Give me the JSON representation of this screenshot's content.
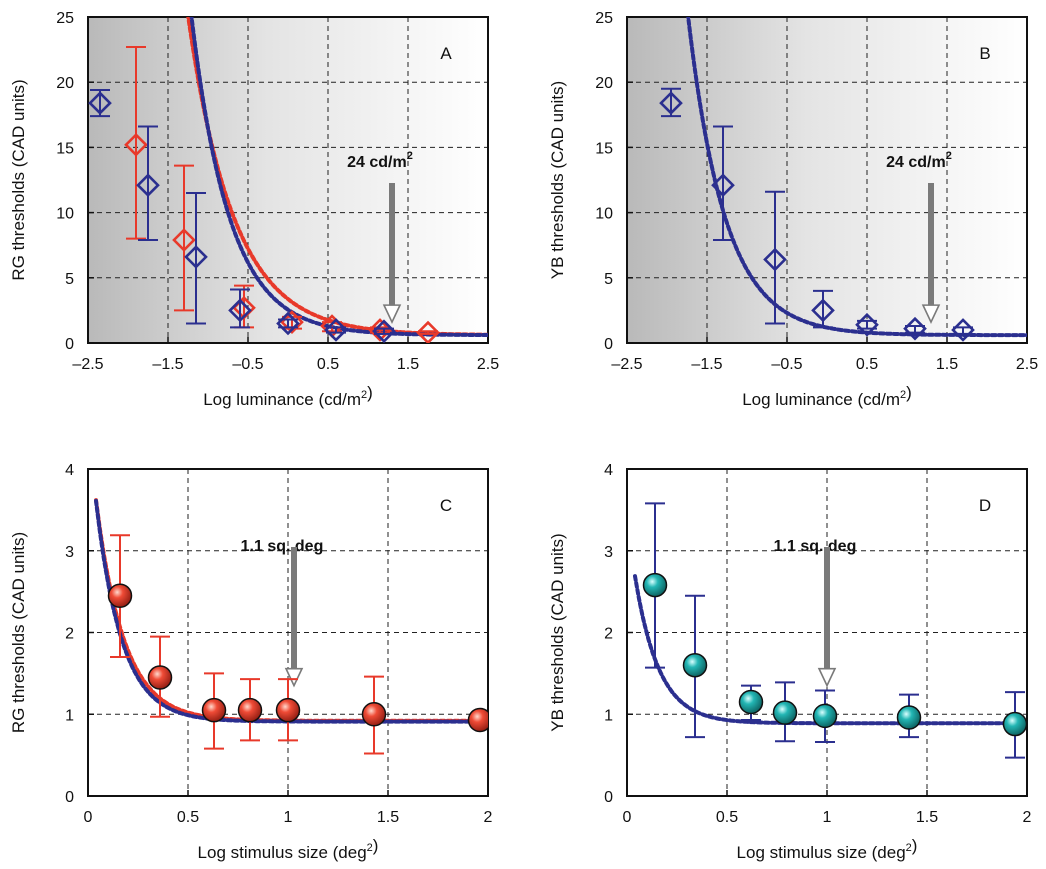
{
  "chart_data": [
    {
      "type": "scatter",
      "panel": "A",
      "xlabel": "Log luminance (cd/m²)",
      "ylabel": "RG thresholds (CAD units)",
      "xlim": [
        -2.5,
        2.5
      ],
      "ylim": [
        0,
        25
      ],
      "xticks": [
        -2.5,
        -1.5,
        -0.5,
        0.5,
        1.5,
        2.5
      ],
      "xtick_labels": [
        "–2.5",
        "–1.5",
        "–0.5",
        "0.5",
        "1.5",
        "2.5"
      ],
      "yticks": [
        0,
        5,
        10,
        15,
        20,
        25
      ],
      "ytick_labels": [
        "0",
        "5",
        "10",
        "15",
        "20",
        "25"
      ],
      "grid": true,
      "background": "gradient-grey-to-white",
      "annotation": {
        "text": "24 cd/m",
        "superscript": "2",
        "x": 1.3
      },
      "marker": "diamond",
      "series": [
        {
          "color": "#e8392a",
          "x": [
            -1.9,
            -1.3,
            -0.55,
            0.05,
            0.55,
            1.15,
            1.75
          ],
          "y": [
            15.2,
            7.9,
            2.7,
            1.6,
            1.3,
            1.0,
            0.8
          ],
          "err_low": [
            8.0,
            2.5,
            1.2,
            1.1,
            0.9,
            0.8,
            0.7
          ],
          "err_high": [
            22.7,
            13.6,
            4.4,
            2.0,
            1.6,
            1.2,
            0.9
          ],
          "fit": {
            "a": 1.46,
            "b": 1.32
          }
        },
        {
          "color": "#2b2f8f",
          "x": [
            -2.35,
            -1.75,
            -1.15,
            -0.6,
            0.0,
            0.6,
            1.2
          ],
          "y": [
            18.4,
            12.1,
            6.6,
            2.5,
            1.5,
            1.0,
            0.9
          ],
          "err_low": [
            17.4,
            7.9,
            1.5,
            1.2,
            1.2,
            0.8,
            0.7
          ],
          "err_high": [
            19.4,
            16.6,
            11.5,
            4.1,
            1.8,
            1.2,
            1.1
          ],
          "fit": {
            "a": 1.46,
            "b": 1.1
          }
        }
      ]
    },
    {
      "type": "scatter",
      "panel": "B",
      "xlabel": "Log luminance (cd/m²)",
      "ylabel": "YB thresholds (CAD units)",
      "xlim": [
        -2.5,
        2.5
      ],
      "ylim": [
        0,
        25
      ],
      "xticks": [
        -2.5,
        -1.5,
        -0.5,
        0.5,
        1.5,
        2.5
      ],
      "xtick_labels": [
        "–2.5",
        "–1.5",
        "–0.5",
        "0.5",
        "1.5",
        "2.5"
      ],
      "yticks": [
        0,
        5,
        10,
        15,
        20,
        25
      ],
      "ytick_labels": [
        "0",
        "5",
        "10",
        "15",
        "20",
        "25"
      ],
      "grid": true,
      "background": "gradient-grey-to-white",
      "annotation": {
        "text": "24 cd/m",
        "superscript": "2",
        "x": 1.3
      },
      "marker": "diamond",
      "series": [
        {
          "color": "#2b2f8f",
          "x": [
            -1.95,
            -1.3,
            -0.65,
            -0.05,
            0.5,
            1.1,
            1.7
          ],
          "y": [
            18.4,
            12.1,
            6.4,
            2.5,
            1.4,
            1.1,
            1.0
          ],
          "err_low": [
            17.4,
            7.9,
            1.5,
            1.2,
            1.1,
            0.8,
            0.7
          ],
          "err_high": [
            19.5,
            16.6,
            11.6,
            4.0,
            1.7,
            1.3,
            1.2
          ],
          "fit": {
            "a": 0.96,
            "b": 1.07
          }
        }
      ]
    },
    {
      "type": "scatter",
      "panel": "C",
      "xlabel": "Log stimulus size (deg²)",
      "ylabel": "RG thresholds (CAD units)",
      "xlim": [
        0,
        2
      ],
      "ylim": [
        0,
        4
      ],
      "xticks": [
        0,
        0.5,
        1,
        1.5,
        2
      ],
      "xtick_labels": [
        "0",
        "0.5",
        "1",
        "1.5",
        "2"
      ],
      "yticks": [
        0,
        1,
        2,
        3,
        4
      ],
      "ytick_labels": [
        "0",
        "1",
        "2",
        "3",
        "4"
      ],
      "grid": true,
      "background": "white",
      "annotation": {
        "text": "1.1 sq. deg",
        "superscript": "",
        "x": 1.03
      },
      "marker": "sphere",
      "marker_color": "#e8392a",
      "series": [
        {
          "color": "#e8392a",
          "x": [
            0.16,
            0.36,
            0.63,
            0.81,
            1.0,
            1.43,
            1.96
          ],
          "y": [
            2.45,
            1.45,
            1.05,
            1.05,
            1.05,
            1.0,
            0.93
          ],
          "err_low": [
            1.7,
            0.97,
            0.58,
            0.68,
            0.68,
            0.52,
            0.88
          ],
          "err_high": [
            3.19,
            1.95,
            1.5,
            1.43,
            1.43,
            1.46,
            0.97
          ],
          "fit": {
            "a": 0.66,
            "b": 0.12,
            "c": 0.92
          }
        },
        {
          "color": "#2b2f8f",
          "x": [],
          "y": [],
          "fit": {
            "a": 0.66,
            "b": 0.11,
            "c": 0.91
          }
        }
      ]
    },
    {
      "type": "scatter",
      "panel": "D",
      "xlabel": "Log stimulus size (deg²)",
      "ylabel": "YB thresholds (CAD units)",
      "xlim": [
        0,
        2
      ],
      "ylim": [
        0,
        4
      ],
      "xticks": [
        0,
        0.5,
        1,
        1.5,
        2
      ],
      "xtick_labels": [
        "0",
        "0.5",
        "1",
        "1.5",
        "2"
      ],
      "yticks": [
        0,
        1,
        2,
        3,
        4
      ],
      "ytick_labels": [
        "0",
        "1",
        "2",
        "3",
        "4"
      ],
      "grid": true,
      "background": "white",
      "annotation": {
        "text": "1.1 sq. deg",
        "superscript": "",
        "x": 1.0
      },
      "marker": "sphere",
      "marker_color": "#1fb0b0",
      "series": [
        {
          "color": "#2b2f8f",
          "x": [
            0.14,
            0.34,
            0.62,
            0.79,
            0.99,
            1.41,
            1.94
          ],
          "y": [
            2.58,
            1.6,
            1.15,
            1.02,
            0.98,
            0.96,
            0.88
          ],
          "err_low": [
            1.57,
            0.72,
            0.93,
            0.67,
            0.66,
            0.72,
            0.47
          ],
          "err_high": [
            3.58,
            2.45,
            1.35,
            1.39,
            1.29,
            1.24,
            1.27
          ],
          "fit": {
            "a": 0.44,
            "b": 0.1,
            "c": 0.89
          }
        }
      ]
    }
  ]
}
